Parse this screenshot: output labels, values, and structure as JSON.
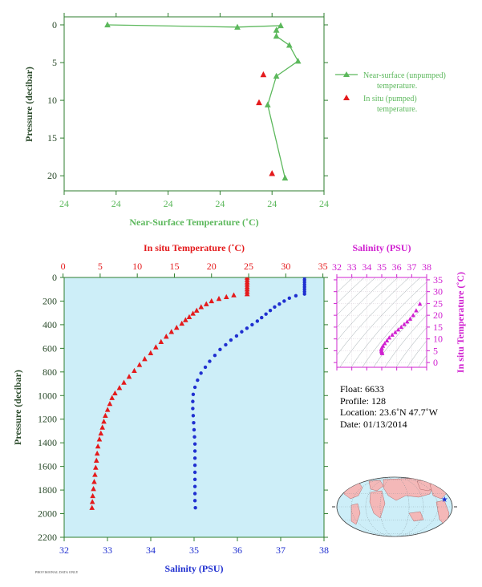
{
  "colors": {
    "green": "#5cb85c",
    "red": "#e41a1c",
    "blue": "#1f2fd0",
    "magenta": "#d020d0",
    "plot_bg": "#cdeef8",
    "axis_text": "#2a4a2a"
  },
  "chart_data": [
    {
      "type": "line",
      "title": "",
      "xlabel": "Near-Surface Temperature (˚C)",
      "ylabel": "Pressure (decibar)",
      "x_tick_labels": [
        "24",
        "24",
        "24",
        "24",
        "24",
        "24"
      ],
      "y_ticks": [
        0,
        5,
        10,
        15,
        20
      ],
      "ylim": [
        0,
        22
      ],
      "y_inverted": true,
      "legend_position": "right",
      "series": [
        {
          "name": "Near-surface (unpumped) temperature.",
          "marker": "triangle",
          "points": [
            [
              24.41,
              0.0
            ],
            [
              24.44,
              0.3
            ],
            [
              24.45,
              0.1
            ],
            [
              24.449,
              0.7
            ],
            [
              24.449,
              1.5
            ],
            [
              24.452,
              2.7
            ],
            [
              24.454,
              4.8
            ],
            [
              24.449,
              6.8
            ],
            [
              24.447,
              10.6
            ],
            [
              24.451,
              20.3
            ]
          ]
        },
        {
          "name": "In situ (pumped) temperature.",
          "marker": "triangle",
          "points": [
            [
              24.446,
              6.6
            ],
            [
              24.445,
              10.3
            ],
            [
              24.448,
              19.7
            ]
          ]
        }
      ]
    },
    {
      "type": "scatter",
      "title": "",
      "ylabel": "Pressure (decibar)",
      "x_top_label": "In situ Temperature (˚C)",
      "x_bottom_label": "Salinity (PSU)",
      "temperature_ticks": [
        0,
        5,
        10,
        15,
        20,
        25,
        30,
        35
      ],
      "salinity_ticks": [
        32,
        33,
        34,
        35,
        36,
        37,
        38
      ],
      "y_ticks": [
        0,
        200,
        400,
        600,
        800,
        1000,
        1200,
        1400,
        1600,
        1800,
        2000,
        2200
      ],
      "ylim": [
        0,
        2200
      ],
      "y_inverted": true,
      "series": [
        {
          "name": "In situ Temperature",
          "marker": "triangle",
          "points": [
            [
              24.8,
              0
            ],
            [
              24.8,
              20
            ],
            [
              24.8,
              40
            ],
            [
              24.8,
              60
            ],
            [
              24.8,
              80
            ],
            [
              24.8,
              100
            ],
            [
              24.8,
              120
            ],
            [
              24.8,
              140
            ],
            [
              23.0,
              150
            ],
            [
              22.0,
              165
            ],
            [
              21.0,
              180
            ],
            [
              20.0,
              200
            ],
            [
              19.3,
              225
            ],
            [
              18.6,
              250
            ],
            [
              18.0,
              280
            ],
            [
              17.5,
              305
            ],
            [
              17.0,
              335
            ],
            [
              16.5,
              360
            ],
            [
              16.0,
              390
            ],
            [
              15.3,
              425
            ],
            [
              14.6,
              460
            ],
            [
              13.9,
              500
            ],
            [
              13.2,
              545
            ],
            [
              12.5,
              590
            ],
            [
              11.8,
              640
            ],
            [
              11.0,
              690
            ],
            [
              10.3,
              740
            ],
            [
              9.6,
              790
            ],
            [
              8.9,
              840
            ],
            [
              8.2,
              890
            ],
            [
              7.6,
              935
            ],
            [
              7.0,
              980
            ],
            [
              6.6,
              1020
            ],
            [
              6.3,
              1070
            ],
            [
              6.0,
              1120
            ],
            [
              5.7,
              1170
            ],
            [
              5.5,
              1220
            ],
            [
              5.3,
              1270
            ],
            [
              5.1,
              1320
            ],
            [
              4.9,
              1370
            ],
            [
              4.7,
              1430
            ],
            [
              4.6,
              1490
            ],
            [
              4.5,
              1550
            ],
            [
              4.4,
              1610
            ],
            [
              4.3,
              1670
            ],
            [
              4.2,
              1730
            ],
            [
              4.1,
              1790
            ],
            [
              4.0,
              1850
            ],
            [
              3.95,
              1900
            ],
            [
              3.9,
              1950
            ]
          ]
        },
        {
          "name": "Salinity",
          "marker": "circle",
          "points": [
            [
              37.55,
              0
            ],
            [
              37.55,
              20
            ],
            [
              37.55,
              40
            ],
            [
              37.55,
              60
            ],
            [
              37.55,
              80
            ],
            [
              37.55,
              100
            ],
            [
              37.55,
              120
            ],
            [
              37.55,
              140
            ],
            [
              37.35,
              155
            ],
            [
              37.2,
              175
            ],
            [
              37.08,
              200
            ],
            [
              36.97,
              225
            ],
            [
              36.86,
              250
            ],
            [
              36.76,
              280
            ],
            [
              36.66,
              310
            ],
            [
              36.56,
              340
            ],
            [
              36.46,
              370
            ],
            [
              36.34,
              400
            ],
            [
              36.22,
              430
            ],
            [
              36.1,
              460
            ],
            [
              35.98,
              495
            ],
            [
              35.85,
              530
            ],
            [
              35.73,
              570
            ],
            [
              35.6,
              610
            ],
            [
              35.48,
              660
            ],
            [
              35.36,
              710
            ],
            [
              35.26,
              760
            ],
            [
              35.16,
              810
            ],
            [
              35.08,
              870
            ],
            [
              35.02,
              930
            ],
            [
              34.98,
              990
            ],
            [
              34.97,
              1050
            ],
            [
              34.97,
              1110
            ],
            [
              34.98,
              1170
            ],
            [
              34.99,
              1230
            ],
            [
              35.0,
              1290
            ],
            [
              35.01,
              1350
            ],
            [
              35.02,
              1410
            ],
            [
              35.02,
              1470
            ],
            [
              35.02,
              1530
            ],
            [
              35.02,
              1590
            ],
            [
              35.02,
              1650
            ],
            [
              35.02,
              1710
            ],
            [
              35.02,
              1770
            ],
            [
              35.02,
              1830
            ],
            [
              35.02,
              1890
            ],
            [
              35.03,
              1950
            ]
          ]
        }
      ]
    },
    {
      "type": "scatter",
      "title": "",
      "x_top_label": "Salinity (PSU)",
      "ylabel": "In situ Temperature (˚C)",
      "salinity_ticks": [
        32,
        33,
        34,
        35,
        36,
        37,
        38
      ],
      "temperature_ticks": [
        0,
        5,
        10,
        15,
        20,
        25,
        30,
        35
      ],
      "xlim": [
        32,
        38
      ],
      "ylim": [
        -2,
        36
      ],
      "grid": true,
      "series": [
        {
          "name": "T-S",
          "marker": "triangle",
          "points": [
            [
              37.55,
              24.8
            ],
            [
              37.3,
              22.0
            ],
            [
              37.1,
              20.0
            ],
            [
              36.9,
              18.5
            ],
            [
              36.7,
              17.3
            ],
            [
              36.5,
              16.2
            ],
            [
              36.3,
              15.0
            ],
            [
              36.1,
              13.9
            ],
            [
              35.9,
              12.8
            ],
            [
              35.7,
              11.7
            ],
            [
              35.5,
              10.5
            ],
            [
              35.35,
              9.3
            ],
            [
              35.2,
              8.1
            ],
            [
              35.08,
              7.0
            ],
            [
              35.0,
              6.2
            ],
            [
              34.97,
              5.6
            ],
            [
              34.98,
              5.0
            ],
            [
              35.0,
              4.6
            ],
            [
              35.02,
              4.2
            ],
            [
              35.03,
              3.9
            ]
          ]
        }
      ]
    }
  ],
  "legend": {
    "items": [
      {
        "label_line1": "Near-surface (unpumped)",
        "label_line2": "temperature."
      },
      {
        "label_line1": "In situ (pumped)",
        "label_line2": "temperature."
      }
    ]
  },
  "float_info": {
    "float": "Float:  6633",
    "profile": "Profile:  128",
    "location": "Location:  23.6˚N  47.7˚W",
    "date": "Date:  01/13/2014"
  },
  "map": {
    "marker_lat": 23.6,
    "marker_lon": -47.7
  },
  "footer_text": "PROVISIONAL DATA ONLY"
}
